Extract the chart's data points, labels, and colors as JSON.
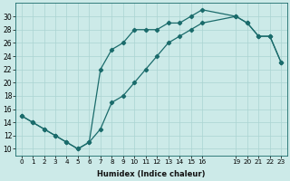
{
  "xlabel": "Humidex (Indice chaleur)",
  "bg_color": "#cceae8",
  "grid_color": "#aad4d2",
  "line_color": "#1a6b6b",
  "marker_color": "#1a6b6b",
  "xlim": [
    -0.5,
    23.5
  ],
  "ylim": [
    9,
    32
  ],
  "xticks": [
    0,
    1,
    2,
    3,
    4,
    5,
    6,
    7,
    8,
    9,
    10,
    11,
    12,
    13,
    14,
    15,
    16,
    19,
    20,
    21,
    22,
    23
  ],
  "yticks": [
    10,
    12,
    14,
    16,
    18,
    20,
    22,
    24,
    26,
    28,
    30
  ],
  "line1_x": [
    0,
    1,
    2,
    3,
    4,
    5,
    6,
    7,
    8,
    9,
    10,
    11,
    12,
    13,
    14,
    15,
    16,
    19,
    20,
    21,
    22,
    23
  ],
  "line1_y": [
    15,
    14,
    13,
    12,
    11,
    10,
    11,
    22,
    25,
    26,
    28,
    28,
    28,
    29,
    29,
    30,
    31,
    30,
    29,
    27,
    27,
    23
  ],
  "line2_x": [
    0,
    1,
    2,
    3,
    4,
    5,
    6,
    7,
    8,
    9,
    10,
    11,
    12,
    13,
    14,
    15,
    16,
    19,
    20,
    21,
    22,
    23
  ],
  "line2_y": [
    15,
    14,
    13,
    12,
    11,
    10,
    11,
    13,
    17,
    18,
    20,
    22,
    24,
    26,
    27,
    28,
    29,
    30,
    29,
    27,
    27,
    23
  ]
}
